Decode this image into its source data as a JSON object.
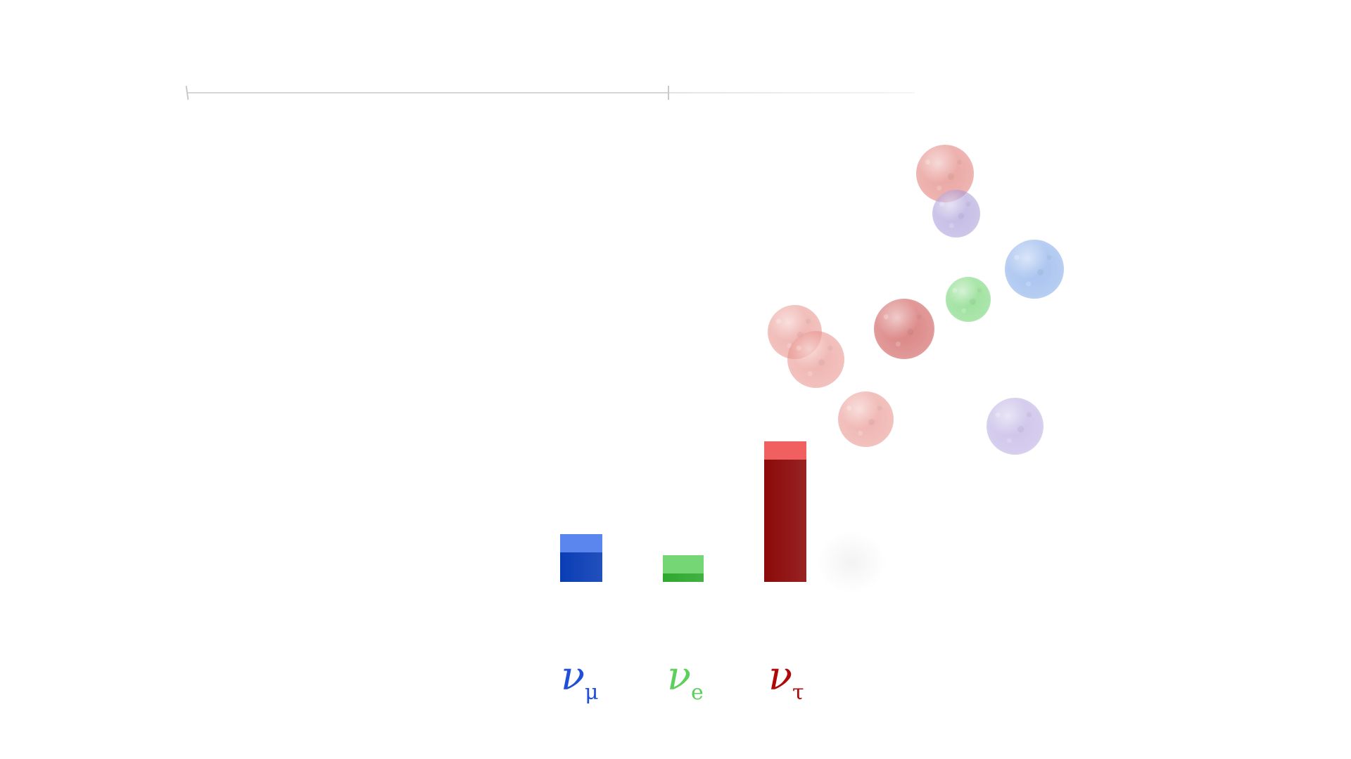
{
  "timeline": {
    "progress": 0.66
  },
  "spheres": [
    {
      "flavor": "tau",
      "color": "#e07a74"
    },
    {
      "flavor": "mu-tau-mix",
      "color": "#a89ad8"
    },
    {
      "flavor": "mu",
      "color": "#7ea6e8"
    },
    {
      "flavor": "e",
      "color": "#6bd26b"
    },
    {
      "flavor": "tau",
      "color": "#c94a48"
    },
    {
      "flavor": "tau",
      "color": "#e8908a"
    },
    {
      "flavor": "tau",
      "color": "#e8908a"
    },
    {
      "flavor": "tau",
      "color": "#e8908a"
    },
    {
      "flavor": "mu-tau-mix",
      "color": "#b6a8e0"
    }
  ],
  "bars": [
    {
      "flavor": "mu",
      "relative_height": 0.34,
      "front": "#0a3db5",
      "top": "#5a86ee"
    },
    {
      "flavor": "e",
      "relative_height": 0.19,
      "front": "#2ea82e",
      "top": "#74d674"
    },
    {
      "flavor": "tau",
      "relative_height": 1.0,
      "front": "#8c0a0a",
      "top": "#f06060"
    }
  ],
  "labels": [
    {
      "symbol": "ν",
      "subscript": "μ",
      "color": "#1f4fd8"
    },
    {
      "symbol": "ν",
      "subscript": "e",
      "color": "#5ccf5c"
    },
    {
      "symbol": "ν",
      "subscript": "τ",
      "color": "#b00808"
    }
  ]
}
